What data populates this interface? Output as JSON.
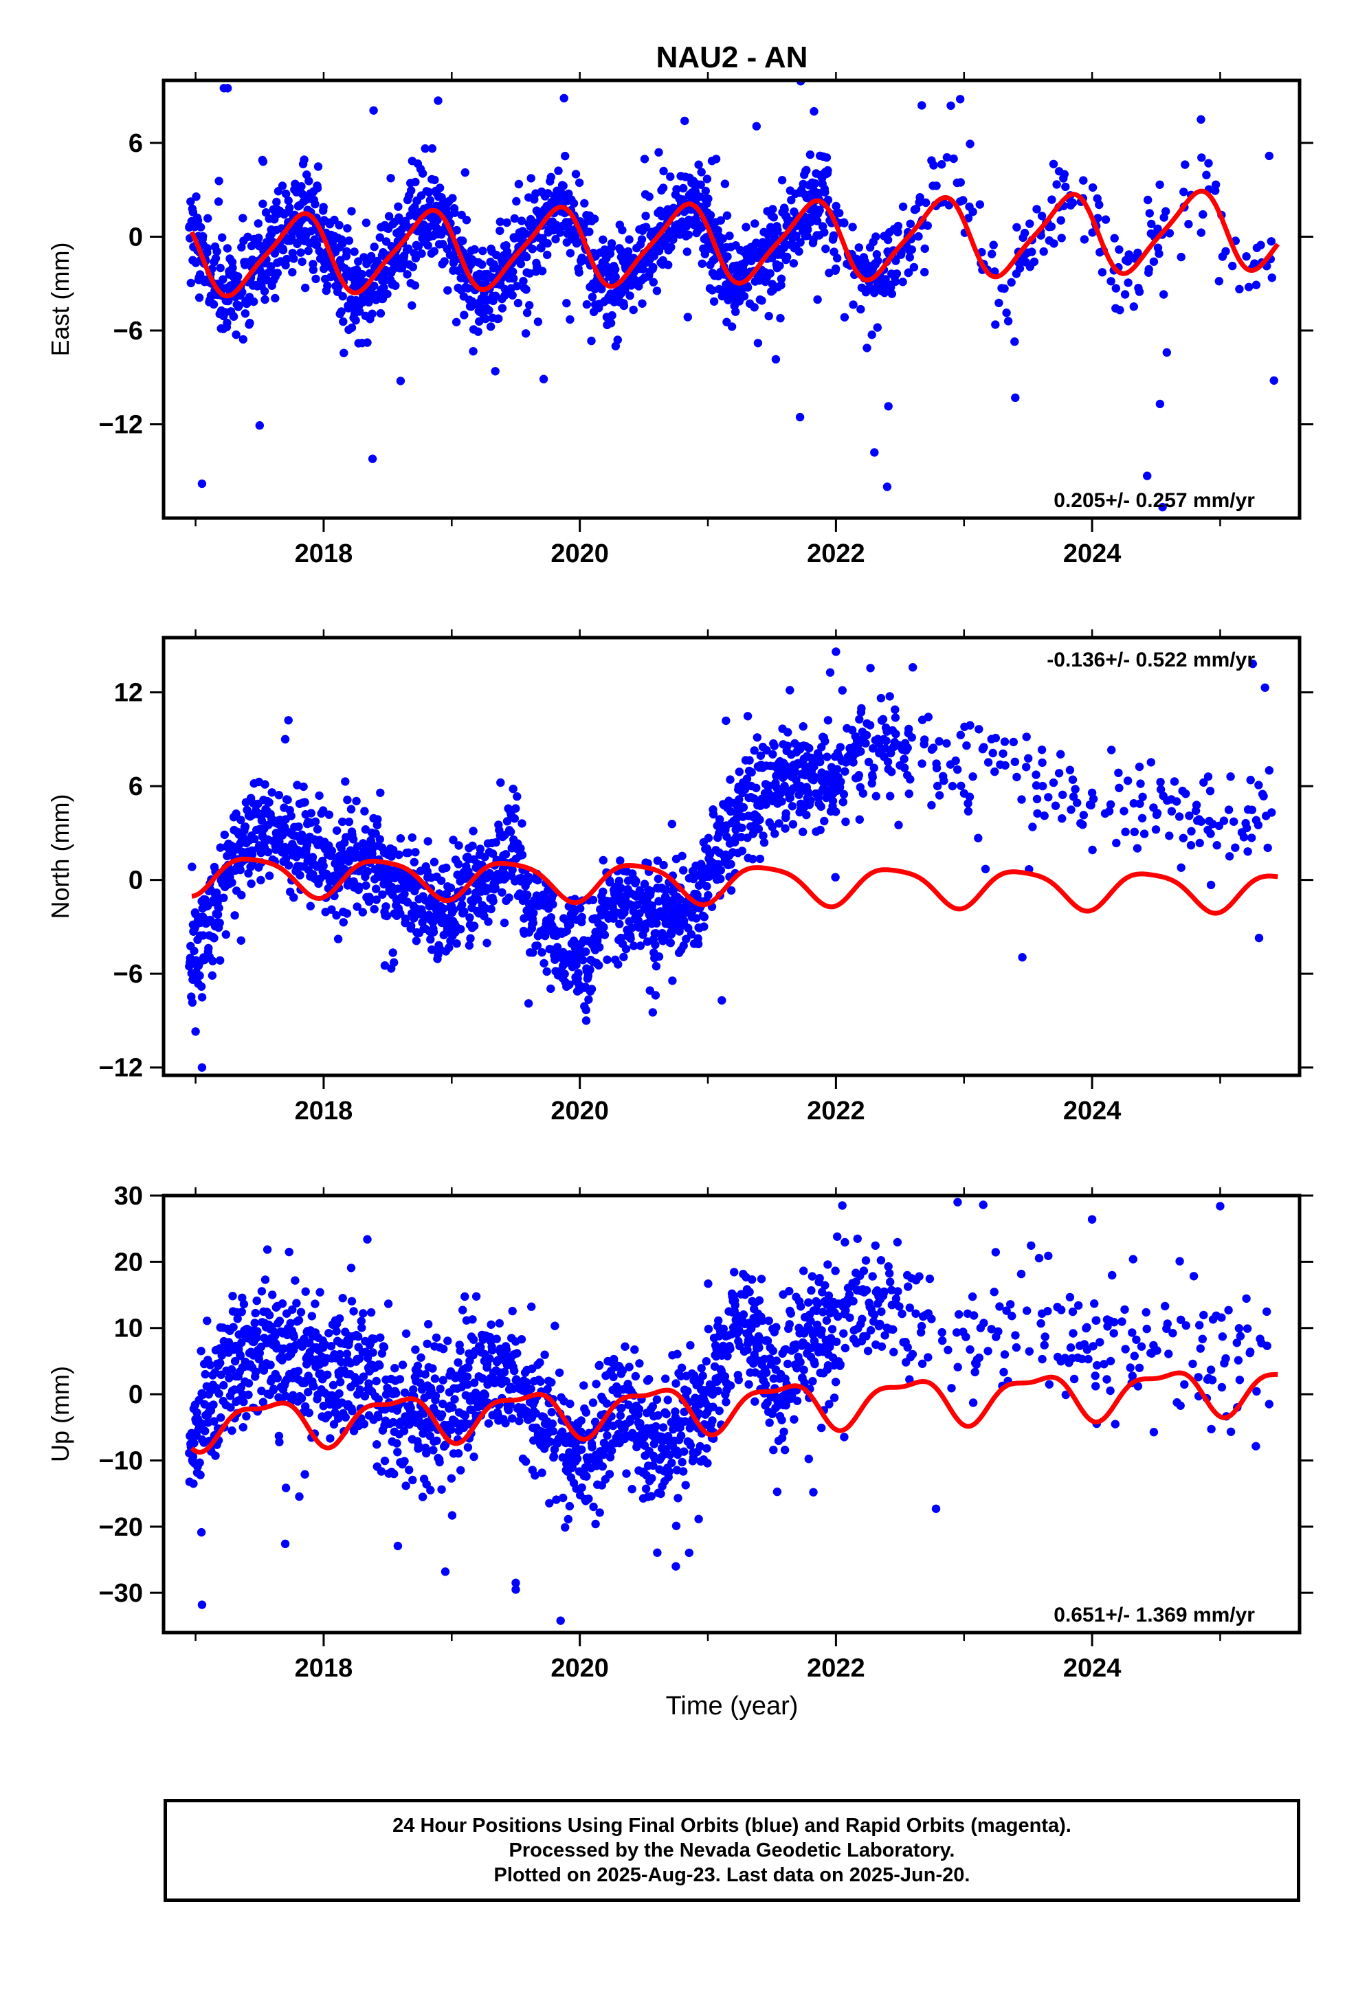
{
  "title": "NAU2 - AN",
  "xlabel": "Time (year)",
  "colors": {
    "points": "#0000ff",
    "model": "#ff0000",
    "frame": "#000000"
  },
  "caption": {
    "line1": "24 Hour Positions Using Final Orbits (blue) and Rapid Orbits (magenta).",
    "line2": "Processed by the Nevada Geodetic Laboratory.",
    "line3": "Plotted on 2025-Aug-23. Last data on 2025-Jun-20."
  },
  "chart_data": [
    {
      "type": "scatter",
      "id": "east",
      "ylabel": "East (mm)",
      "xlim": [
        2016.75,
        2025.62
      ],
      "ylim": [
        -18,
        10
      ],
      "xticks": [
        2018,
        2020,
        2022,
        2024
      ],
      "yticks": [
        6,
        0,
        -6,
        -12
      ],
      "velocity_label": "0.205+/- 0.257 mm/yr",
      "velocity_position": "bottom-right",
      "model": {
        "trend_mm_per_yr": 0.205,
        "offset": -0.45,
        "annual_amp": 2.4,
        "annual_phase": 2017.55,
        "semiannual_amp": 0.5,
        "semiannual_phase": 2017.3
      },
      "scatter": {
        "noise": 1.5,
        "outlier_rate": 0.06,
        "outlier_scale": 5.0
      },
      "highlighted_points": [
        {
          "x": 2017.25,
          "y": 9.5
        },
        {
          "x": 2017.05,
          "y": -15.8
        },
        {
          "x": 2022.3,
          "y": -13.8
        },
        {
          "x": 2022.4,
          "y": -16.0
        },
        {
          "x": 2022.67,
          "y": 8.4
        },
        {
          "x": 2022.97,
          "y": 8.8
        },
        {
          "x": 2024.85,
          "y": 7.5
        },
        {
          "x": 2024.43,
          "y": -15.3
        },
        {
          "x": 2024.55,
          "y": -17.3
        },
        {
          "x": 2024.53,
          "y": -10.7
        },
        {
          "x": 2023.4,
          "y": -10.3
        },
        {
          "x": 2025.42,
          "y": -9.2
        },
        {
          "x": 2018.3,
          "y": -6.8
        },
        {
          "x": 2020.28,
          "y": -7.0
        }
      ]
    },
    {
      "type": "scatter",
      "id": "north",
      "ylabel": "North (mm)",
      "xlim": [
        2016.75,
        2025.62
      ],
      "ylim": [
        -12.5,
        15.5
      ],
      "xticks": [
        2018,
        2020,
        2022,
        2024
      ],
      "yticks": [
        12,
        6,
        0,
        -6,
        -12
      ],
      "velocity_label": "-0.136+/- 0.522 mm/yr",
      "velocity_position": "top-right",
      "model": {
        "trend_mm_per_yr": -0.136,
        "offset": -0.15,
        "annual_amp": 1.2,
        "annual_phase": 2017.2,
        "semiannual_amp": 0.25,
        "semiannual_phase": 2017.1
      },
      "data_track": [
        [
          2016.95,
          -5.5
        ],
        [
          2017.1,
          -3.5
        ],
        [
          2017.3,
          0.5
        ],
        [
          2017.6,
          2.0
        ],
        [
          2017.9,
          1.5
        ],
        [
          2018.3,
          0.0
        ],
        [
          2018.7,
          -2.0
        ],
        [
          2019.0,
          -2.3
        ],
        [
          2019.3,
          -1.0
        ],
        [
          2019.5,
          0.5
        ],
        [
          2019.6,
          -3.0
        ],
        [
          2019.9,
          -4.5
        ],
        [
          2020.05,
          -5.5
        ],
        [
          2020.2,
          -2.5
        ],
        [
          2020.5,
          -3.0
        ],
        [
          2020.7,
          -3.0
        ],
        [
          2020.9,
          -1.5
        ],
        [
          2021.05,
          1.5
        ],
        [
          2021.3,
          4.0
        ],
        [
          2021.6,
          5.5
        ],
        [
          2022.0,
          6.5
        ],
        [
          2022.4,
          8.0
        ],
        [
          2022.8,
          7.5
        ],
        [
          2023.3,
          6.5
        ],
        [
          2023.8,
          5.0
        ],
        [
          2024.3,
          4.5
        ],
        [
          2024.8,
          4.0
        ],
        [
          2025.45,
          3.5
        ]
      ],
      "scatter": {
        "noise": 1.6,
        "outlier_rate": 0.05,
        "outlier_scale": 4.0
      },
      "highlighted_points": [
        {
          "x": 2017.05,
          "y": -12.0
        },
        {
          "x": 2017.0,
          "y": -9.7
        },
        {
          "x": 2022.0,
          "y": 14.6
        },
        {
          "x": 2022.6,
          "y": 13.6
        },
        {
          "x": 2025.35,
          "y": 12.3
        },
        {
          "x": 2017.7,
          "y": 9.0
        },
        {
          "x": 2020.05,
          "y": -9.0
        },
        {
          "x": 2019.6,
          "y": -7.9
        }
      ]
    },
    {
      "type": "scatter",
      "id": "up",
      "ylabel": "Up (mm)",
      "xlim": [
        2016.75,
        2025.62
      ],
      "ylim": [
        -36,
        30
      ],
      "xticks": [
        2018,
        2020,
        2022,
        2024
      ],
      "yticks": [
        30,
        20,
        10,
        0,
        -10,
        -20,
        -30
      ],
      "velocity_label": "0.651+/- 1.369 mm/yr",
      "velocity_position": "bottom-right",
      "model": {
        "trend_mm_per_yr": 0.651,
        "offset": -1.8,
        "annual_amp": 3.2,
        "annual_phase": 2017.3,
        "semiannual_amp": 1.2,
        "semiannual_phase": 2017.15
      },
      "data_track": [
        [
          2016.95,
          -5.0
        ],
        [
          2017.2,
          2.0
        ],
        [
          2017.5,
          4.0
        ],
        [
          2017.9,
          5.0
        ],
        [
          2018.3,
          3.0
        ],
        [
          2018.6,
          -8.0
        ],
        [
          2018.9,
          -3.0
        ],
        [
          2019.2,
          3.0
        ],
        [
          2019.5,
          0.0
        ],
        [
          2019.8,
          -8.0
        ],
        [
          2020.1,
          -9.0
        ],
        [
          2020.3,
          -3.0
        ],
        [
          2020.6,
          -11.0
        ],
        [
          2020.9,
          -6.0
        ],
        [
          2021.1,
          5.0
        ],
        [
          2021.3,
          9.0
        ],
        [
          2021.5,
          -4.0
        ],
        [
          2021.8,
          6.0
        ],
        [
          2022.1,
          12.0
        ],
        [
          2022.5,
          9.0
        ],
        [
          2022.9,
          6.0
        ],
        [
          2023.3,
          8.0
        ],
        [
          2023.7,
          4.0
        ],
        [
          2024.1,
          7.0
        ],
        [
          2024.5,
          2.0
        ],
        [
          2024.9,
          3.0
        ],
        [
          2025.45,
          4.0
        ]
      ],
      "scatter": {
        "noise": 5.0,
        "outlier_rate": 0.05,
        "outlier_scale": 3.5
      },
      "highlighted_points": [
        {
          "x": 2017.05,
          "y": -31.8
        },
        {
          "x": 2019.85,
          "y": -34.2
        },
        {
          "x": 2019.5,
          "y": -28.5
        },
        {
          "x": 2019.5,
          "y": -29.5
        },
        {
          "x": 2018.95,
          "y": -26.8
        },
        {
          "x": 2022.05,
          "y": 28.5
        },
        {
          "x": 2022.95,
          "y": 29.0
        },
        {
          "x": 2023.15,
          "y": 28.6
        },
        {
          "x": 2025.0,
          "y": 28.4
        },
        {
          "x": 2024.0,
          "y": 26.4
        },
        {
          "x": 2017.7,
          "y": -22.6
        },
        {
          "x": 2020.75,
          "y": -26.0
        }
      ]
    }
  ]
}
